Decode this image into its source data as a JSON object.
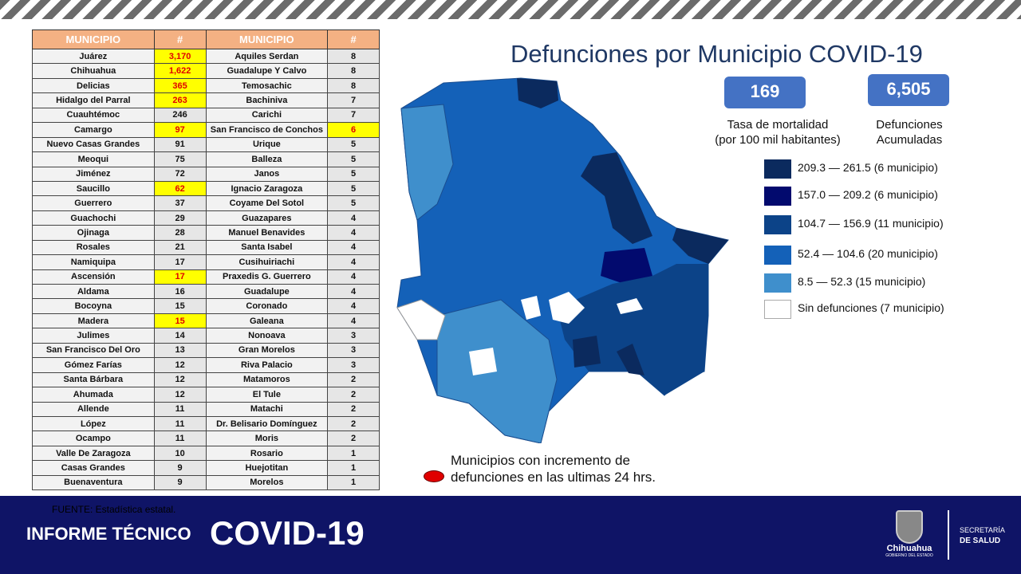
{
  "header": {
    "left_col": "MUNICIPIO",
    "left_num": "#",
    "right_col": "MUNICIPIO",
    "right_num": "#"
  },
  "rows": [
    {
      "m1": "Juárez",
      "n1": "3,170",
      "h1": true,
      "m2": "Aquiles Serdan",
      "n2": "8",
      "h2": false
    },
    {
      "m1": "Chihuahua",
      "n1": "1,622",
      "h1": true,
      "m2": "Guadalupe Y Calvo",
      "n2": "8",
      "h2": false
    },
    {
      "m1": "Delicias",
      "n1": "365",
      "h1": true,
      "m2": "Temosachic",
      "n2": "8",
      "h2": false
    },
    {
      "m1": "Hidalgo del Parral",
      "n1": "263",
      "h1": true,
      "m2": "Bachiniva",
      "n2": "7",
      "h2": false
    },
    {
      "m1": "Cuauhtémoc",
      "n1": "246",
      "h1": false,
      "m2": "Carichi",
      "n2": "7",
      "h2": false
    },
    {
      "m1": "Camargo",
      "n1": "97",
      "h1": true,
      "m2": "San Francisco de Conchos",
      "n2": "6",
      "h2": true
    },
    {
      "m1": "Nuevo Casas Grandes",
      "n1": "91",
      "h1": false,
      "m2": "Urique",
      "n2": "5",
      "h2": false
    },
    {
      "m1": "Meoqui",
      "n1": "75",
      "h1": false,
      "m2": "Balleza",
      "n2": "5",
      "h2": false
    },
    {
      "m1": "Jiménez",
      "n1": "72",
      "h1": false,
      "m2": "Janos",
      "n2": "5",
      "h2": false
    },
    {
      "m1": "Saucillo",
      "n1": "62",
      "h1": true,
      "m2": "Ignacio Zaragoza",
      "n2": "5",
      "h2": false
    },
    {
      "m1": "Guerrero",
      "n1": "37",
      "h1": false,
      "m2": "Coyame Del Sotol",
      "n2": "5",
      "h2": false
    },
    {
      "m1": "Guachochi",
      "n1": "29",
      "h1": false,
      "m2": "Guazapares",
      "n2": "4",
      "h2": false
    },
    {
      "m1": "Ojinaga",
      "n1": "28",
      "h1": false,
      "m2": "Manuel Benavides",
      "n2": "4",
      "h2": false
    },
    {
      "m1": "Rosales",
      "n1": "21",
      "h1": false,
      "m2": "Santa Isabel",
      "n2": "4",
      "h2": false
    },
    {
      "m1": "Namiquipa",
      "n1": "17",
      "h1": false,
      "m2": "Cusihuiriachi",
      "n2": "4",
      "h2": false
    },
    {
      "m1": "Ascensión",
      "n1": "17",
      "h1": true,
      "m2": "Praxedis G. Guerrero",
      "n2": "4",
      "h2": false
    },
    {
      "m1": "Aldama",
      "n1": "16",
      "h1": false,
      "m2": "Guadalupe",
      "n2": "4",
      "h2": false
    },
    {
      "m1": "Bocoyna",
      "n1": "15",
      "h1": false,
      "m2": "Coronado",
      "n2": "4",
      "h2": false
    },
    {
      "m1": "Madera",
      "n1": "15",
      "h1": true,
      "m2": "Galeana",
      "n2": "4",
      "h2": false
    },
    {
      "m1": "Julimes",
      "n1": "14",
      "h1": false,
      "m2": "Nonoava",
      "n2": "3",
      "h2": false
    },
    {
      "m1": "San Francisco Del Oro",
      "n1": "13",
      "h1": false,
      "m2": "Gran Morelos",
      "n2": "3",
      "h2": false
    },
    {
      "m1": "Gómez Farías",
      "n1": "12",
      "h1": false,
      "m2": "Riva Palacio",
      "n2": "3",
      "h2": false
    },
    {
      "m1": "Santa Bárbara",
      "n1": "12",
      "h1": false,
      "m2": "Matamoros",
      "n2": "2",
      "h2": false
    },
    {
      "m1": "Ahumada",
      "n1": "12",
      "h1": false,
      "m2": "El Tule",
      "n2": "2",
      "h2": false
    },
    {
      "m1": "Allende",
      "n1": "11",
      "h1": false,
      "m2": "Matachi",
      "n2": "2",
      "h2": false
    },
    {
      "m1": "López",
      "n1": "11",
      "h1": false,
      "m2": "Dr. Belisario Domínguez",
      "n2": "2",
      "h2": false
    },
    {
      "m1": "Ocampo",
      "n1": "11",
      "h1": false,
      "m2": "Moris",
      "n2": "2",
      "h2": false
    },
    {
      "m1": "Valle De Zaragoza",
      "n1": "10",
      "h1": false,
      "m2": "Rosario",
      "n2": "1",
      "h2": false
    },
    {
      "m1": "Casas Grandes",
      "n1": "9",
      "h1": false,
      "m2": "Huejotitan",
      "n2": "1",
      "h2": false
    },
    {
      "m1": "Buenaventura",
      "n1": "9",
      "h1": false,
      "m2": "Morelos",
      "n2": "1",
      "h2": false
    }
  ],
  "title": "Defunciones por Municipio COVID-19",
  "kpis": {
    "rate_value": "169",
    "rate_label1": "Tasa de mortalidad",
    "rate_label2": "(por 100 mil habitantes)",
    "total_value": "6,505",
    "total_label1": "Defunciones",
    "total_label2": "Acumuladas"
  },
  "legend": [
    {
      "label": "209.3 — 261.5 (6 municipio)",
      "color": "#0b2a5e"
    },
    {
      "label": "157.0 — 209.2 (6 municipio)",
      "color": "#020a6e"
    },
    {
      "label": "104.7 — 156.9 (11 municipio)",
      "color": "#0c4388"
    },
    {
      "label": "52.4 — 104.6 (20 municipio)",
      "color": "#1461b8"
    },
    {
      "label": "8.5 — 52.3 (15 municipio)",
      "color": "#3f8fcc"
    },
    {
      "label": "Sin defunciones (7 municipio)",
      "color": "#ffffff"
    }
  ],
  "note": {
    "line1": "Municipios con incremento de",
    "line2": "defunciones en las ultimas 24 hrs.",
    "marker_color": "#e00000"
  },
  "footer": {
    "source": "FUENTE: Estadística estatal.",
    "informe": "INFORME TÉCNICO",
    "covid": "COVID-19",
    "logo_text": "Chihuahua",
    "logo_sub": "GOBIERNO DEL ESTADO",
    "sec1": "SECRETARÍA",
    "sec2": "DE SALUD"
  }
}
